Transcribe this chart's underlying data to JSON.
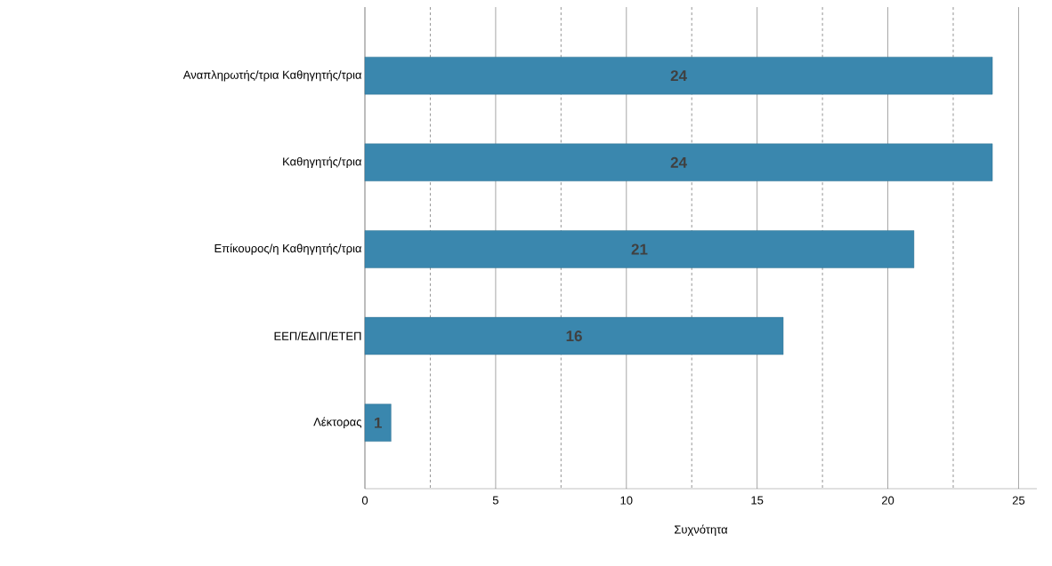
{
  "chart_data": {
    "type": "bar",
    "orientation": "horizontal",
    "xlabel": "Συχνότητα",
    "categories": [
      "Αναπληρωτής/τρια Καθηγητής/τρια",
      "Καθηγητής/τρια",
      "Επίκουρος/η Καθηγητής/τρια",
      "ΕΕΠ/ΕΔΙΠ/ΕΤΕΠ",
      "Λέκτορας"
    ],
    "values": [
      24,
      24,
      21,
      16,
      1
    ],
    "color": "#3a87ae",
    "data_labels": true,
    "xlim": [
      0,
      25.7
    ],
    "xticks": [
      0,
      {
        "value": 2.5,
        "label": null
      },
      5,
      {
        "value": 7.5,
        "label": null
      },
      10,
      {
        "value": 12.5,
        "label": null
      },
      15,
      {
        "value": 17.5,
        "label": null
      },
      20,
      {
        "value": 22.5,
        "label": null
      },
      25
    ],
    "grid": "x"
  }
}
